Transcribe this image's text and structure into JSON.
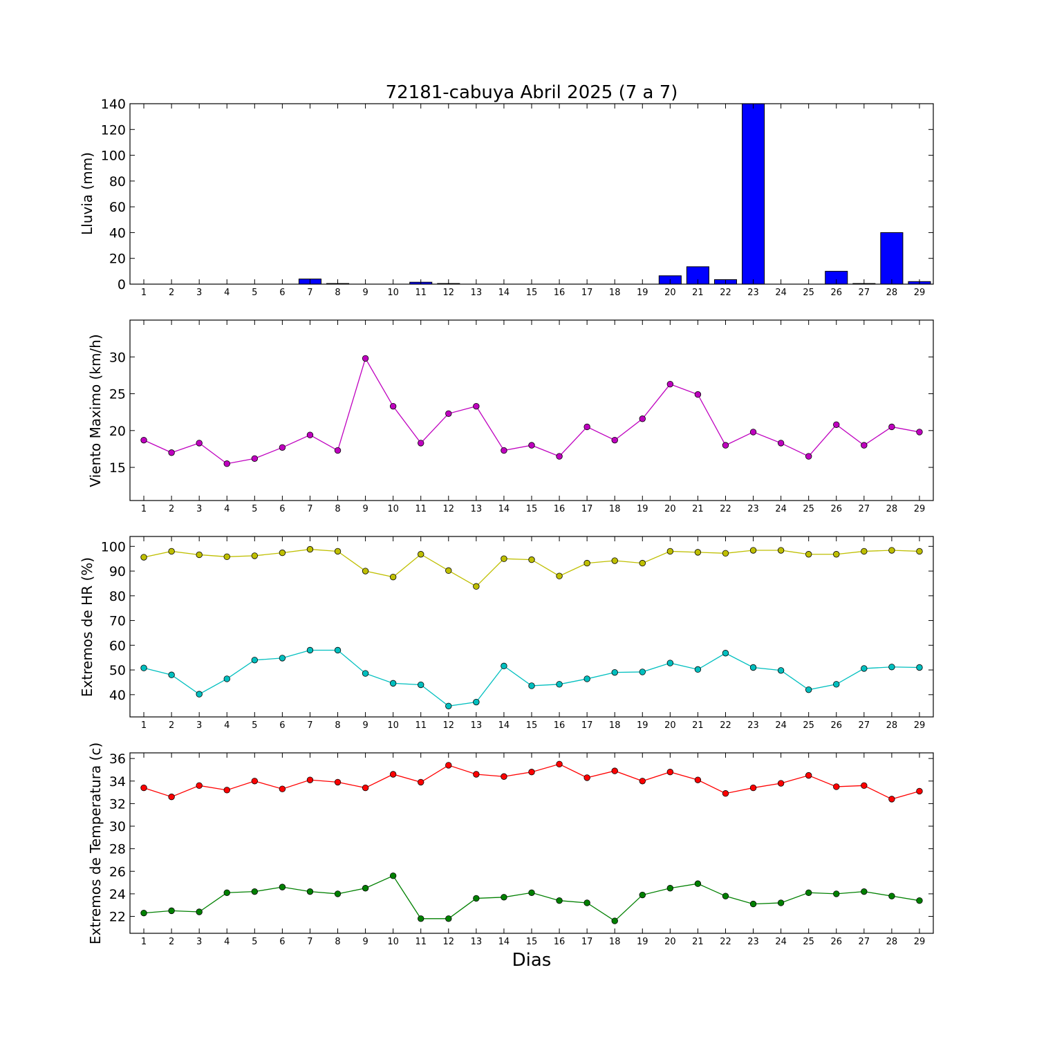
{
  "figure": {
    "title": "72181-cabuya Abril 2025  (7 a 7)",
    "xlabel": "Dias"
  },
  "chart_data": [
    {
      "type": "bar",
      "ylabel": "Lluvia (mm)",
      "ylim": [
        0,
        140
      ],
      "yticks": [
        0,
        20,
        40,
        60,
        80,
        100,
        120,
        140
      ],
      "xlim": [
        0.5,
        29.5
      ],
      "categories": [
        1,
        2,
        3,
        4,
        5,
        6,
        7,
        8,
        9,
        10,
        11,
        12,
        13,
        14,
        15,
        16,
        17,
        18,
        19,
        20,
        21,
        22,
        23,
        24,
        25,
        26,
        27,
        28,
        29
      ],
      "series": [
        {
          "color": "#0000ff",
          "values": [
            0,
            0,
            0,
            0,
            0,
            0,
            4.0,
            0.5,
            0,
            0,
            1.5,
            0.5,
            0,
            0,
            0,
            0,
            0,
            0,
            0,
            6.5,
            13.5,
            3.5,
            140,
            0,
            0,
            10.0,
            0.5,
            40.0,
            2.0
          ]
        }
      ],
      "grid": false
    },
    {
      "type": "line",
      "ylabel": "Viento Maximo (km/h)",
      "ylim": [
        10.5,
        35
      ],
      "yticks": [
        15,
        20,
        25,
        30
      ],
      "xlim": [
        0.5,
        29.5
      ],
      "x": [
        1,
        2,
        3,
        4,
        5,
        6,
        7,
        8,
        9,
        10,
        11,
        12,
        13,
        14,
        15,
        16,
        17,
        18,
        19,
        20,
        21,
        22,
        23,
        24,
        25,
        26,
        27,
        28,
        29
      ],
      "series": [
        {
          "color": "#bf00bf",
          "values": [
            18.7,
            17.0,
            18.3,
            15.5,
            16.2,
            17.7,
            19.4,
            17.3,
            29.8,
            23.3,
            18.3,
            22.3,
            23.3,
            17.3,
            18.0,
            16.5,
            20.5,
            18.7,
            21.6,
            26.3,
            24.9,
            18.0,
            19.8,
            18.3,
            16.5,
            20.8,
            18.0,
            20.5,
            19.8
          ]
        }
      ],
      "grid": false
    },
    {
      "type": "line",
      "ylabel": "Extremos de HR (%)",
      "ylim": [
        31,
        104
      ],
      "yticks": [
        40,
        50,
        60,
        70,
        80,
        90,
        100
      ],
      "xlim": [
        0.5,
        29.5
      ],
      "x": [
        1,
        2,
        3,
        4,
        5,
        6,
        7,
        8,
        9,
        10,
        11,
        12,
        13,
        14,
        15,
        16,
        17,
        18,
        19,
        20,
        21,
        22,
        23,
        24,
        25,
        26,
        27,
        28,
        29
      ],
      "series": [
        {
          "color": "#bfbf00",
          "values": [
            95.6,
            98.0,
            96.6,
            95.8,
            96.2,
            97.4,
            98.8,
            98.0,
            90.0,
            87.6,
            96.8,
            90.2,
            83.8,
            95.0,
            94.6,
            88.0,
            93.2,
            94.2,
            93.2,
            98.0,
            97.6,
            97.2,
            98.4,
            98.4,
            96.8,
            96.8,
            98.0,
            98.4,
            98.0
          ]
        },
        {
          "color": "#00bfbf",
          "values": [
            50.8,
            48.0,
            40.2,
            46.4,
            54.0,
            54.8,
            58.0,
            58.0,
            48.6,
            44.6,
            44.0,
            35.4,
            37.0,
            51.6,
            43.6,
            44.2,
            46.4,
            49.0,
            49.2,
            52.8,
            50.2,
            56.8,
            51.0,
            49.8,
            42.0,
            44.2,
            50.6,
            51.2,
            51.0
          ]
        }
      ],
      "grid": false
    },
    {
      "type": "line",
      "ylabel": "Extremos de Temperatura (c)",
      "ylim": [
        20.5,
        36.5
      ],
      "yticks": [
        22,
        24,
        26,
        28,
        30,
        32,
        34,
        36
      ],
      "xlim": [
        0.5,
        29.5
      ],
      "x": [
        1,
        2,
        3,
        4,
        5,
        6,
        7,
        8,
        9,
        10,
        11,
        12,
        13,
        14,
        15,
        16,
        17,
        18,
        19,
        20,
        21,
        22,
        23,
        24,
        25,
        26,
        27,
        28,
        29
      ],
      "series": [
        {
          "color": "#ff0000",
          "values": [
            33.4,
            32.6,
            33.6,
            33.2,
            34.0,
            33.3,
            34.1,
            33.9,
            33.4,
            34.6,
            33.9,
            35.4,
            34.6,
            34.4,
            34.8,
            35.5,
            34.3,
            34.9,
            34.0,
            34.8,
            34.1,
            32.9,
            33.4,
            33.8,
            34.5,
            33.5,
            33.6,
            32.4,
            33.1
          ]
        },
        {
          "color": "#008000",
          "values": [
            22.3,
            22.5,
            22.4,
            24.1,
            24.2,
            24.6,
            24.2,
            24.0,
            24.5,
            25.6,
            21.8,
            21.8,
            23.6,
            23.7,
            24.1,
            23.4,
            23.2,
            21.6,
            23.9,
            24.5,
            24.9,
            23.8,
            23.1,
            23.2,
            24.1,
            24.0,
            24.2,
            23.8,
            23.4
          ]
        }
      ],
      "grid": false
    }
  ]
}
